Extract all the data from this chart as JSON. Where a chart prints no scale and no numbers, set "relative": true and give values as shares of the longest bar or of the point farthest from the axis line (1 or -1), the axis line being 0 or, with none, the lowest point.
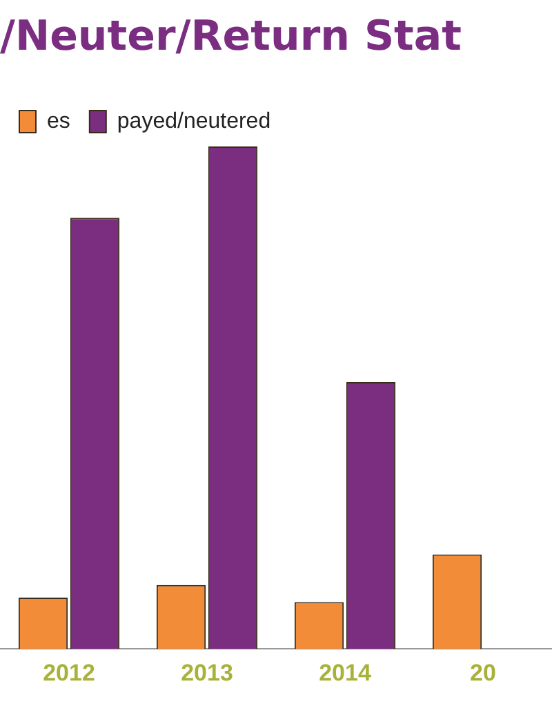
{
  "chart_data": {
    "type": "bar",
    "title": "/Neuter/Return Stat",
    "categories": [
      "2012",
      "2013",
      "2014",
      "20"
    ],
    "relative": true,
    "legend": "top left",
    "grid": false,
    "series": [
      {
        "name": "es",
        "color": "#f28c38",
        "values": [
          0.102,
          0.127,
          0.093,
          0.188
        ]
      },
      {
        "name": "payed/neutered",
        "color": "#7b2d80",
        "values": [
          0.858,
          1,
          0.531,
          null
        ]
      }
    ]
  }
}
